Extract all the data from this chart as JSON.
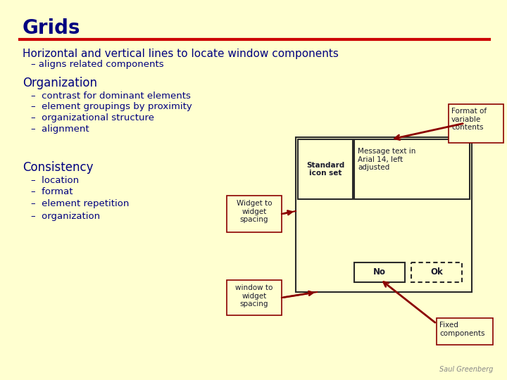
{
  "bg_color": "#FFFFD0",
  "title": "Grids",
  "title_color": "#000080",
  "title_fontsize": 20,
  "red_line_color": "#CC0000",
  "subtitle": "Horizontal and vertical lines to locate window components",
  "subtitle_color": "#000080",
  "subtitle_fontsize": 11,
  "bullet1": "– aligns related components",
  "org_title": "Organization",
  "org_bullets": [
    "–  contrast for dominant elements",
    "–  element groupings by proximity",
    "–  organizational structure",
    "–  alignment"
  ],
  "cons_title": "Consistency",
  "cons_bullets": [
    "–  location",
    "–  format",
    "–  element repetition",
    "–  organization"
  ],
  "text_color": "#000080",
  "body_fontsize": 9.5,
  "section_fontsize": 12,
  "annotation_color": "#8B0000",
  "grid_line_color": "#b0b8d0",
  "saul_text": "Saul Greenberg"
}
